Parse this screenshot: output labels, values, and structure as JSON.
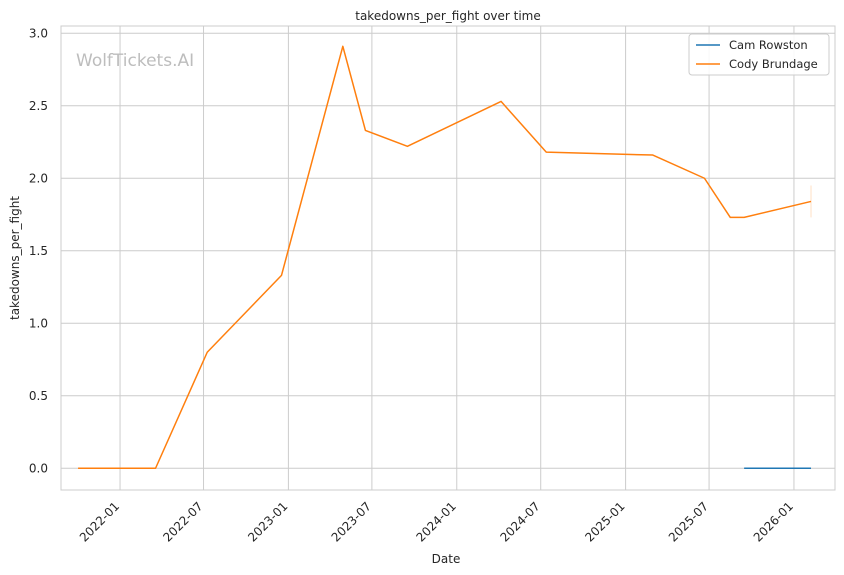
{
  "chart_data": {
    "type": "line",
    "title": "takedowns_per_fight over time",
    "xlabel": "Date",
    "ylabel": "takedowns_per_fight",
    "watermark": "WolfTickets.AI",
    "ylim": [
      -0.15,
      3.05
    ],
    "xlim": [
      "2021-08-26",
      "2026-03-31"
    ],
    "x_ticks": [
      "2022-01",
      "2022-07",
      "2023-01",
      "2023-07",
      "2024-01",
      "2024-07",
      "2025-01",
      "2025-07",
      "2026-01"
    ],
    "y_ticks": [
      "0.0",
      "0.5",
      "1.0",
      "1.5",
      "2.0",
      "2.5",
      "3.0"
    ],
    "grid": true,
    "legend_position": "top-right",
    "series": [
      {
        "name": "Cam Rowston",
        "color": "#1f77b4",
        "points": [
          {
            "x": "2025-09-15",
            "y": 0.0
          },
          {
            "x": "2026-02-07",
            "y": 0.0
          }
        ]
      },
      {
        "name": "Cody Brundage",
        "color": "#ff7f0e",
        "points": [
          {
            "x": "2021-10-02",
            "y": 0.0
          },
          {
            "x": "2022-03-19",
            "y": 0.0
          },
          {
            "x": "2022-07-09",
            "y": 0.8
          },
          {
            "x": "2022-12-17",
            "y": 1.33
          },
          {
            "x": "2023-04-29",
            "y": 2.91
          },
          {
            "x": "2023-06-17",
            "y": 2.33
          },
          {
            "x": "2023-09-16",
            "y": 2.22
          },
          {
            "x": "2024-04-06",
            "y": 2.53
          },
          {
            "x": "2024-07-13",
            "y": 2.18
          },
          {
            "x": "2025-03-01",
            "y": 2.16
          },
          {
            "x": "2025-06-21",
            "y": 2.0
          },
          {
            "x": "2025-08-16",
            "y": 1.73
          },
          {
            "x": "2025-09-15",
            "y": 1.73
          },
          {
            "x": "2026-02-07",
            "y": 1.84
          }
        ],
        "error_bar": {
          "x": "2026-02-07",
          "low": 1.73,
          "high": 1.95
        }
      }
    ]
  }
}
